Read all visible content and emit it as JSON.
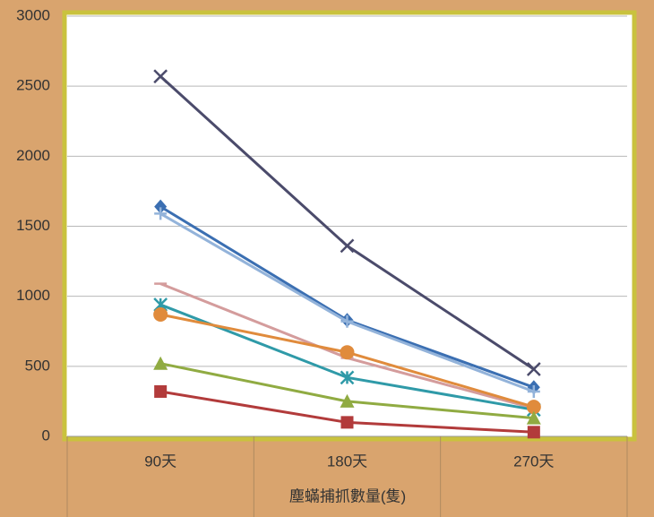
{
  "chart_data": {
    "type": "line",
    "categories": [
      "90天",
      "180天",
      "270天"
    ],
    "x_label": "塵蟎捕抓數量(隻)",
    "ylim": [
      0,
      3000
    ],
    "yticks": [
      0,
      500,
      1000,
      1500,
      2000,
      2500,
      3000
    ],
    "grid": true,
    "series": [
      {
        "color": "#4b4b6b",
        "marker": "x",
        "values": [
          2570,
          1360,
          480
        ]
      },
      {
        "color": "#3b6fb2",
        "marker": "diamond",
        "values": [
          1640,
          830,
          350
        ]
      },
      {
        "color": "#93b3da",
        "marker": "plus",
        "values": [
          1590,
          820,
          320
        ]
      },
      {
        "color": "#d49c9c",
        "marker": "dash",
        "values": [
          1090,
          560,
          200
        ]
      },
      {
        "color": "#2f9aa8",
        "marker": "asterisk",
        "values": [
          940,
          420,
          190
        ]
      },
      {
        "color": "#e08b3c",
        "marker": "circle",
        "values": [
          870,
          600,
          210
        ]
      },
      {
        "color": "#90ab42",
        "marker": "triangle",
        "values": [
          520,
          250,
          130
        ]
      },
      {
        "color": "#b23b3b",
        "marker": "square",
        "values": [
          320,
          100,
          30
        ]
      }
    ]
  }
}
